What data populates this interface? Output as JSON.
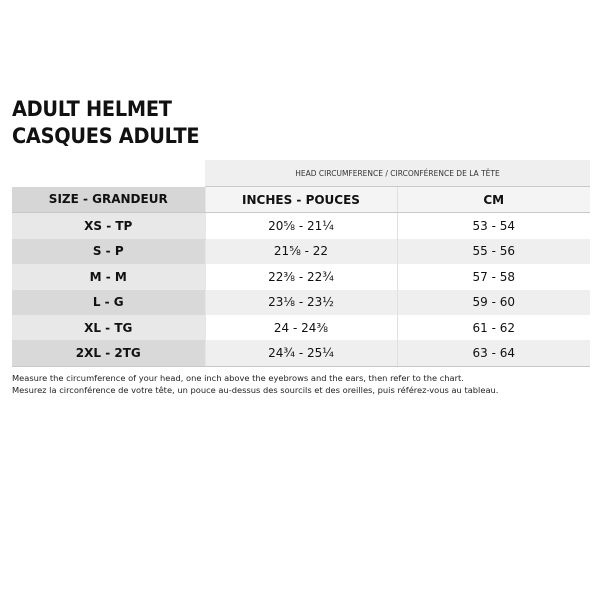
{
  "title": {
    "line1": "ADULT HELMET",
    "line2": "CASQUES ADULTE"
  },
  "table": {
    "group_header": "HEAD CIRCUMFERENCE / CIRCONFÉRENCE DE LA TÊTE",
    "headers": [
      "SIZE - GRANDEUR",
      "INCHES - POUCES",
      "CM"
    ],
    "rows": [
      [
        "XS - TP",
        "20⅝ - 21¼",
        "53 - 54"
      ],
      [
        "S - P",
        "21⅝ - 22",
        "55 - 56"
      ],
      [
        "M - M",
        "22⅜ - 22¾",
        "57 - 58"
      ],
      [
        "L - G",
        "23⅛ - 23½",
        "59 - 60"
      ],
      [
        "XL - TG",
        "24 - 24⅜",
        "61 - 62"
      ],
      [
        "2XL - 2TG",
        "24¾ - 25¼",
        "63 - 64"
      ]
    ]
  },
  "note": {
    "en": "Measure the circumference of your head, one inch above the eyebrows and the ears, then refer to the chart.",
    "fr": "Mesurez la circonférence de votre tête, un pouce au-dessus des sourcils et des oreilles, puis référez-vous au tableau."
  }
}
